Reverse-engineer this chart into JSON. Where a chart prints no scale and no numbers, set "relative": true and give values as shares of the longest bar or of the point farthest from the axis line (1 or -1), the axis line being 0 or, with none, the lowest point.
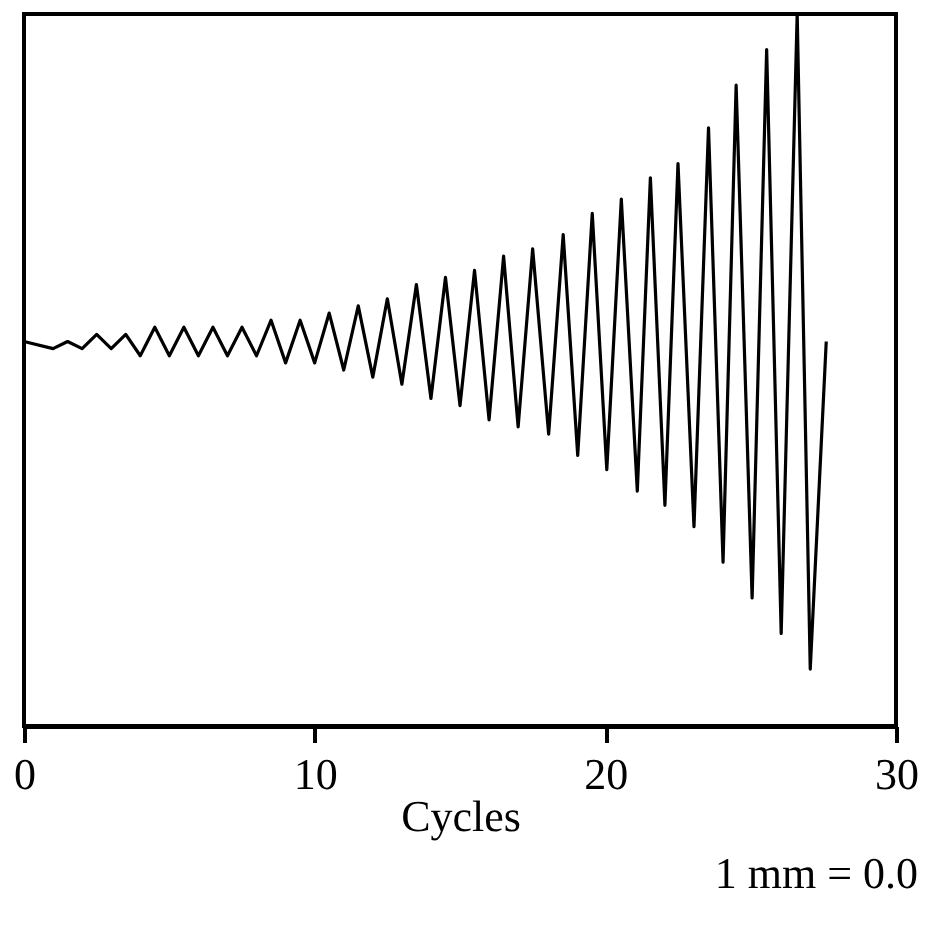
{
  "chart_data": {
    "type": "line",
    "xlabel": "Cycles",
    "annotations": [
      "1 mm = 0.0"
    ],
    "relative": true,
    "xlim": [
      0,
      30
    ],
    "xticks": [
      0,
      10,
      20,
      30
    ],
    "color": "#000000",
    "x": [
      0,
      1,
      1.5,
      2,
      2.5,
      3,
      3.5,
      4,
      4.5,
      5,
      5.5,
      6,
      6.5,
      7,
      7.5,
      8,
      8.5,
      9,
      9.5,
      10,
      10.5,
      11,
      11.5,
      12,
      12.5,
      13,
      13.5,
      14,
      14.5,
      15,
      15.5,
      16,
      16.5,
      17,
      17.5,
      18.05,
      18.55,
      19.05,
      19.55,
      20.05,
      20.55,
      21.1,
      21.55,
      22.05,
      22.5,
      23.05,
      23.55,
      24.05,
      24.5,
      25.05,
      25.55,
      26.05,
      26.6,
      27.05,
      27.6
    ],
    "values": [
      0.54,
      0.53,
      0.54,
      0.53,
      0.55,
      0.53,
      0.55,
      0.52,
      0.56,
      0.52,
      0.56,
      0.52,
      0.56,
      0.52,
      0.56,
      0.52,
      0.57,
      0.51,
      0.57,
      0.51,
      0.58,
      0.5,
      0.59,
      0.49,
      0.6,
      0.48,
      0.62,
      0.46,
      0.63,
      0.45,
      0.64,
      0.43,
      0.66,
      0.42,
      0.67,
      0.41,
      0.69,
      0.38,
      0.72,
      0.36,
      0.74,
      0.33,
      0.77,
      0.31,
      0.79,
      0.28,
      0.84,
      0.23,
      0.9,
      0.18,
      0.95,
      0.13,
      1,
      0.08,
      0.54
    ]
  }
}
